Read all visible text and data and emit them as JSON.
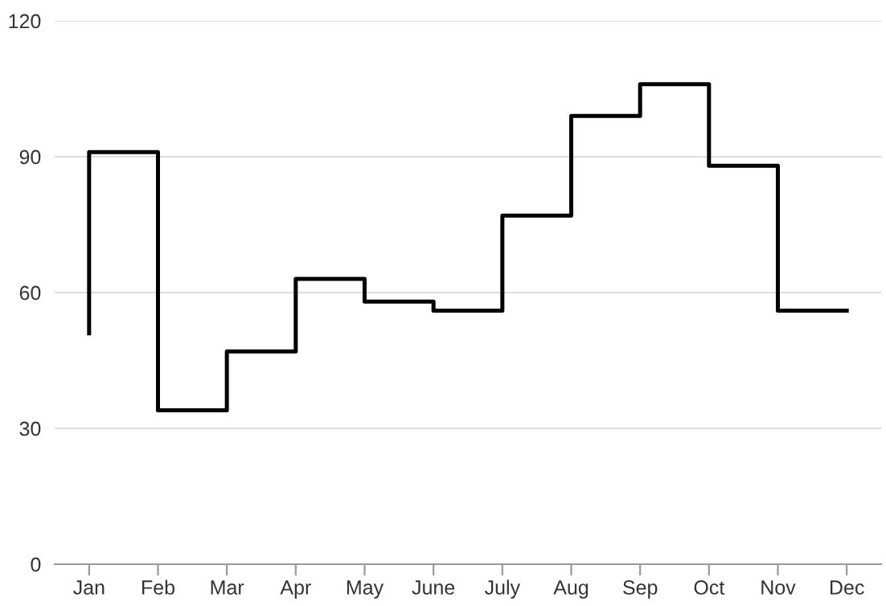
{
  "chart_data": {
    "type": "step",
    "categories": [
      "Jan",
      "Feb",
      "Mar",
      "Apr",
      "May",
      "June",
      "July",
      "Aug",
      "Sep",
      "Oct",
      "Nov",
      "Dec"
    ],
    "series": [
      {
        "color": "#000000",
        "values": [
          51,
          91,
          34,
          47,
          63,
          58,
          56,
          77,
          99,
          106,
          88,
          56
        ]
      }
    ],
    "ylim": [
      0,
      120
    ],
    "yticks": [
      0,
      30,
      60,
      90,
      120
    ],
    "grid": "y",
    "legend": false,
    "marker": "none",
    "line_style": "solid"
  }
}
